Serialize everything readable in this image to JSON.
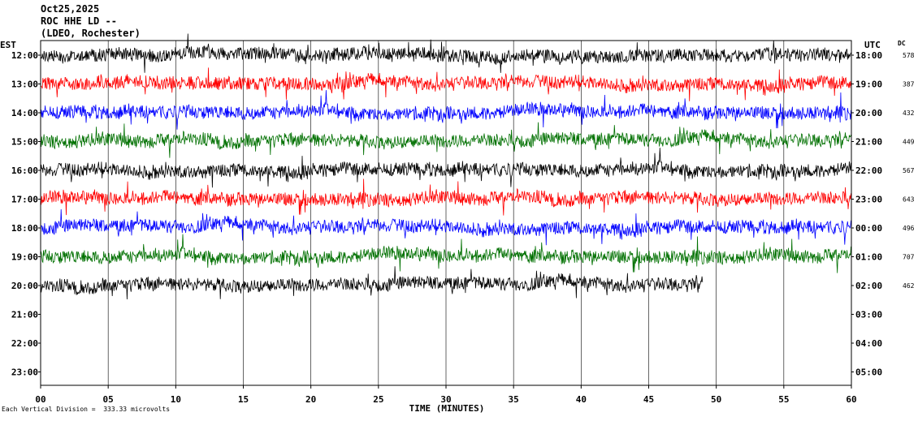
{
  "header": {
    "date": "Oct25,2025",
    "station": "ROC HHE LD --",
    "network": "(LDEO, Rochester)"
  },
  "chart_data": {
    "type": "line",
    "title": "Oct25,2025 ROC HHE LD --",
    "left_axis_label": "EST",
    "right_axis_label": "UTC",
    "dc_label": "DC",
    "xlabel": "TIME (MINUTES)",
    "xlim": [
      0,
      60
    ],
    "x_ticks": [
      "00",
      "05",
      "10",
      "15",
      "20",
      "25",
      "30",
      "35",
      "40",
      "45",
      "50",
      "55",
      "60"
    ],
    "scale_note": "Each Vertical Division =  333.33 microvolts",
    "colors": [
      "#000000",
      "#ff0000",
      "#0000ff",
      "#007000"
    ],
    "rows": [
      {
        "est": "12:00",
        "utc": "18:00",
        "dc": "578",
        "end_minute": 60
      },
      {
        "est": "13:00",
        "utc": "19:00",
        "dc": "387",
        "end_minute": 60
      },
      {
        "est": "14:00",
        "utc": "20:00",
        "dc": "432",
        "end_minute": 60
      },
      {
        "est": "15:00",
        "utc": "21:00",
        "dc": "449",
        "end_minute": 60
      },
      {
        "est": "16:00",
        "utc": "22:00",
        "dc": "567",
        "end_minute": 60
      },
      {
        "est": "17:00",
        "utc": "23:00",
        "dc": "643",
        "end_minute": 60
      },
      {
        "est": "18:00",
        "utc": "00:00",
        "dc": "496",
        "end_minute": 60
      },
      {
        "est": "19:00",
        "utc": "01:00",
        "dc": "707",
        "end_minute": 60
      },
      {
        "est": "20:00",
        "utc": "02:00",
        "dc": "462",
        "end_minute": 49
      },
      {
        "est": "21:00",
        "utc": "03:00",
        "dc": "",
        "end_minute": 0
      },
      {
        "est": "22:00",
        "utc": "04:00",
        "dc": "",
        "end_minute": 0
      },
      {
        "est": "23:00",
        "utc": "05:00",
        "dc": "",
        "end_minute": 0
      }
    ]
  }
}
